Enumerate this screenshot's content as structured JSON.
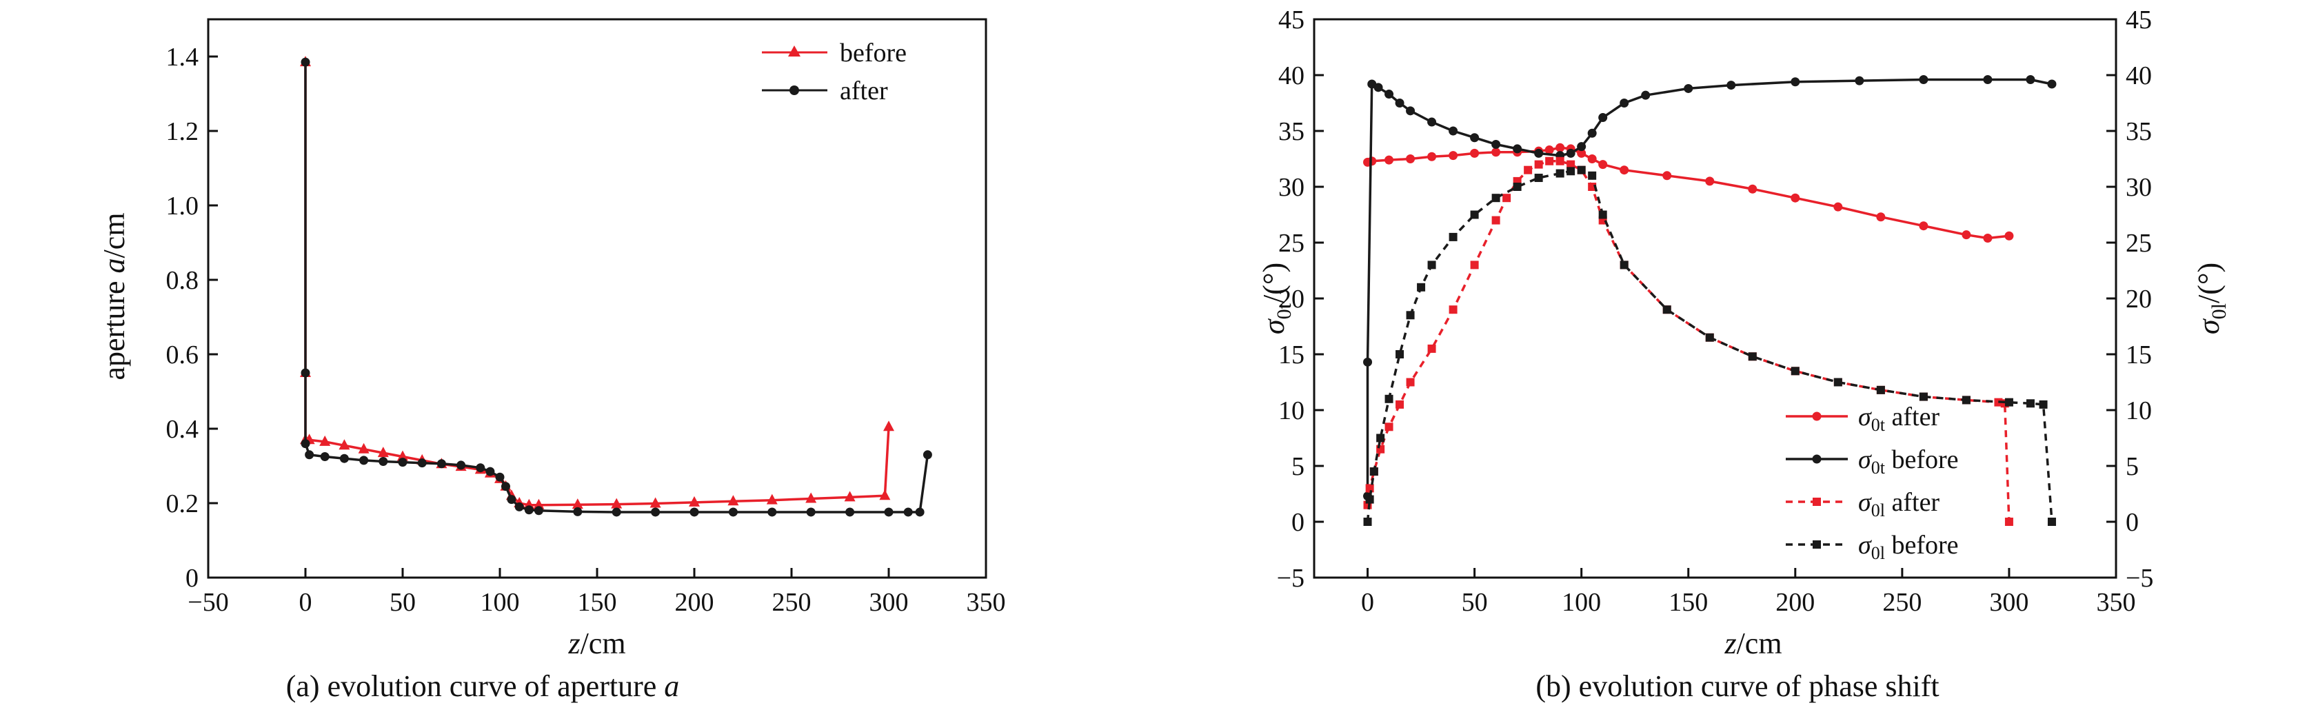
{
  "chart_data": [
    {
      "type": "line",
      "caption": "(a) evolution curve of aperture a",
      "xlabel": "z/cm",
      "ylabel": "aperture a/cm",
      "xlim": [
        -50,
        350
      ],
      "ylim": [
        0,
        1.5
      ],
      "xticks": [
        -50,
        0,
        50,
        100,
        150,
        200,
        250,
        300,
        350
      ],
      "yticks": [
        0,
        0.2,
        0.4,
        0.6,
        0.8,
        1.0,
        1.2,
        1.4
      ],
      "ytick_labels": [
        "0",
        "0.2",
        "0.4",
        "0.6",
        "0.8",
        "1.0",
        "1.2",
        "1.4"
      ],
      "legend": {
        "position": "top-right",
        "entries": [
          "before",
          "after"
        ]
      },
      "series": [
        {
          "name": "before",
          "color": "#e8202a",
          "marker": "triangle",
          "x": [
            0,
            0,
            0,
            2,
            10,
            20,
            30,
            40,
            50,
            60,
            70,
            80,
            90,
            95,
            100,
            103,
            106,
            110,
            115,
            120,
            140,
            160,
            180,
            200,
            220,
            240,
            260,
            280,
            298,
            300
          ],
          "y": [
            1.385,
            0.55,
            0.37,
            0.37,
            0.365,
            0.355,
            0.345,
            0.335,
            0.325,
            0.315,
            0.305,
            0.298,
            0.29,
            0.28,
            0.265,
            0.245,
            0.22,
            0.2,
            0.195,
            0.195,
            0.196,
            0.197,
            0.199,
            0.202,
            0.205,
            0.208,
            0.212,
            0.216,
            0.22,
            0.405
          ]
        },
        {
          "name": "after",
          "color": "#1a1a1a",
          "marker": "circle",
          "x": [
            0,
            0,
            0,
            2,
            10,
            20,
            30,
            40,
            50,
            60,
            70,
            80,
            90,
            95,
            100,
            103,
            106,
            110,
            115,
            120,
            140,
            160,
            180,
            200,
            220,
            240,
            260,
            280,
            300,
            310,
            316,
            320
          ],
          "y": [
            1.385,
            0.55,
            0.36,
            0.33,
            0.325,
            0.32,
            0.315,
            0.312,
            0.31,
            0.308,
            0.306,
            0.302,
            0.295,
            0.285,
            0.27,
            0.245,
            0.21,
            0.19,
            0.182,
            0.18,
            0.177,
            0.176,
            0.176,
            0.176,
            0.176,
            0.176,
            0.176,
            0.176,
            0.176,
            0.176,
            0.176,
            0.33
          ]
        }
      ]
    },
    {
      "type": "line",
      "caption": "(b) evolution curve of phase shift",
      "xlabel": "z/cm",
      "ylabel_left": "σ0t/(°)",
      "ylabel_right": "σ0l/(°)",
      "xlim": [
        -25,
        350
      ],
      "ylim": [
        -5,
        45
      ],
      "xticks": [
        0,
        50,
        100,
        150,
        200,
        250,
        300,
        350
      ],
      "yticks": [
        -5,
        0,
        5,
        10,
        15,
        20,
        25,
        30,
        35,
        40,
        45
      ],
      "legend": {
        "position": "bottom-right",
        "entries": [
          "σ0t after",
          "σ0t before",
          "σ0l after",
          "σ0l before"
        ]
      },
      "series": [
        {
          "name": "σ0t after",
          "color": "#e8202a",
          "style": "solid",
          "marker": "circle",
          "x": [
            0,
            2,
            10,
            20,
            30,
            40,
            50,
            60,
            70,
            80,
            85,
            90,
            95,
            100,
            105,
            110,
            120,
            140,
            160,
            180,
            200,
            220,
            240,
            260,
            280,
            290,
            300
          ],
          "y": [
            32.2,
            32.3,
            32.4,
            32.5,
            32.7,
            32.8,
            33.0,
            33.1,
            33.1,
            33.2,
            33.3,
            33.5,
            33.4,
            33.0,
            32.5,
            32.0,
            31.5,
            31.0,
            30.5,
            29.8,
            29.0,
            28.2,
            27.3,
            26.5,
            25.7,
            25.4,
            25.6
          ]
        },
        {
          "name": "σ0t before",
          "color": "#1a1a1a",
          "style": "solid",
          "marker": "circle",
          "x": [
            0,
            0,
            2,
            5,
            10,
            15,
            20,
            30,
            40,
            50,
            60,
            70,
            80,
            90,
            95,
            100,
            105,
            110,
            120,
            130,
            150,
            170,
            200,
            230,
            260,
            290,
            310,
            320
          ],
          "y": [
            2.3,
            14.3,
            39.2,
            38.9,
            38.3,
            37.5,
            36.8,
            35.8,
            35.0,
            34.4,
            33.8,
            33.4,
            33.0,
            32.8,
            33.0,
            33.6,
            34.8,
            36.2,
            37.5,
            38.2,
            38.8,
            39.1,
            39.4,
            39.5,
            39.6,
            39.6,
            39.6,
            39.2
          ]
        },
        {
          "name": "σ0l after",
          "color": "#e8202a",
          "style": "dashed",
          "marker": "square",
          "x": [
            0,
            1,
            3,
            6,
            10,
            15,
            20,
            30,
            40,
            50,
            60,
            65,
            70,
            75,
            80,
            85,
            90,
            95,
            100,
            105,
            110,
            120,
            140,
            160,
            180,
            200,
            220,
            240,
            260,
            280,
            295,
            298,
            300
          ],
          "y": [
            1.5,
            3.0,
            4.5,
            6.5,
            8.5,
            10.5,
            12.5,
            15.5,
            19.0,
            23.0,
            27.0,
            29.0,
            30.5,
            31.5,
            32.0,
            32.3,
            32.3,
            32.0,
            31.5,
            30.0,
            27.0,
            23.0,
            19.0,
            16.5,
            14.8,
            13.5,
            12.5,
            11.8,
            11.2,
            10.9,
            10.7,
            10.6,
            0
          ]
        },
        {
          "name": "σ0l before",
          "color": "#1a1a1a",
          "style": "dashed",
          "marker": "square",
          "x": [
            0,
            1,
            3,
            6,
            10,
            15,
            20,
            25,
            30,
            40,
            50,
            60,
            70,
            80,
            90,
            95,
            100,
            105,
            110,
            120,
            140,
            160,
            180,
            200,
            220,
            240,
            260,
            280,
            300,
            310,
            316,
            320
          ],
          "y": [
            0,
            2.0,
            4.5,
            7.5,
            11.0,
            15.0,
            18.5,
            21.0,
            23.0,
            25.5,
            27.5,
            29.0,
            30.0,
            30.8,
            31.2,
            31.4,
            31.5,
            31.0,
            27.5,
            23.0,
            19.0,
            16.5,
            14.8,
            13.5,
            12.5,
            11.8,
            11.2,
            10.9,
            10.7,
            10.6,
            10.5,
            0
          ]
        }
      ]
    }
  ]
}
